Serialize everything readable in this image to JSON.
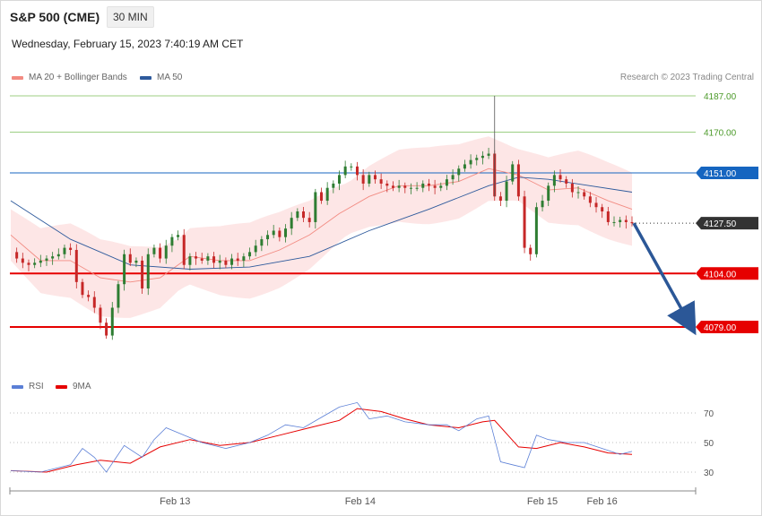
{
  "header": {
    "title": "S&P 500 (CME)",
    "timeframe": "30 MIN",
    "datetime": "Wednesday, February 15, 2023 7:40:19 AM CET",
    "credit": "Research © 2023 Trading Central"
  },
  "legend": {
    "ma20_label": "MA 20 + Bollinger Bands",
    "ma50_label": "MA 50",
    "rsi_label": "RSI",
    "rsi_ma_label": "9MA"
  },
  "colors": {
    "ma20": "#f28b82",
    "ma50": "#2e5a9c",
    "bollinger_fill": "#fde2e2",
    "up_candle": "#2e7d32",
    "down_candle": "#c62828",
    "resistance_green": "#7cbf5a",
    "current_price": "#1565c0",
    "support_red": "#e60000",
    "rsi": "#5b7fd6",
    "rsi_ma": "#e60000",
    "arrow": "#2b5797"
  },
  "chart_data": [
    {
      "type": "line",
      "title": "S&P 500 (CME)",
      "timeframe": "30 MIN",
      "x_ticks": [
        "Feb 13",
        "Feb 14",
        "Feb 15",
        "Feb 16"
      ],
      "ylim": [
        4042,
        4192
      ],
      "levels": [
        {
          "value": 4187.0,
          "label": "4187.00",
          "kind": "resistance"
        },
        {
          "value": 4170.0,
          "label": "4170.00",
          "kind": "resistance"
        },
        {
          "value": 4151.0,
          "label": "4151.00",
          "kind": "current"
        },
        {
          "value": 4127.5,
          "label": "4127.50",
          "kind": "last"
        },
        {
          "value": 4104.0,
          "label": "4104.00",
          "kind": "support"
        },
        {
          "value": 4079.0,
          "label": "4079.00",
          "kind": "support"
        }
      ],
      "price_close_path": [
        [
          0,
          4114
        ],
        [
          2,
          4111
        ],
        [
          4,
          4109
        ],
        [
          6,
          4108
        ],
        [
          8,
          4109
        ],
        [
          10,
          4110
        ],
        [
          12,
          4111
        ],
        [
          14,
          4112
        ],
        [
          16,
          4113
        ],
        [
          18,
          4116
        ],
        [
          20,
          4115
        ],
        [
          22,
          4100
        ],
        [
          24,
          4094
        ],
        [
          26,
          4093
        ],
        [
          28,
          4088
        ],
        [
          30,
          4081
        ],
        [
          32,
          4075
        ],
        [
          34,
          4088
        ],
        [
          36,
          4099
        ],
        [
          38,
          4113
        ],
        [
          40,
          4109
        ],
        [
          42,
          4110
        ],
        [
          44,
          4097
        ],
        [
          46,
          4113
        ],
        [
          48,
          4116
        ],
        [
          50,
          4111
        ],
        [
          52,
          4117
        ],
        [
          54,
          4121
        ],
        [
          56,
          4122
        ],
        [
          58,
          4108
        ],
        [
          60,
          4112
        ],
        [
          62,
          4111
        ],
        [
          64,
          4110
        ],
        [
          66,
          4112
        ],
        [
          68,
          4109
        ],
        [
          70,
          4110
        ],
        [
          72,
          4108
        ],
        [
          74,
          4111
        ],
        [
          76,
          4110
        ],
        [
          78,
          4112
        ],
        [
          80,
          4114
        ],
        [
          82,
          4117
        ],
        [
          84,
          4120
        ],
        [
          86,
          4122
        ],
        [
          88,
          4124
        ],
        [
          90,
          4121
        ],
        [
          92,
          4125
        ],
        [
          94,
          4130
        ],
        [
          96,
          4133
        ],
        [
          98,
          4130
        ],
        [
          100,
          4128
        ],
        [
          102,
          4142
        ],
        [
          104,
          4138
        ],
        [
          106,
          4144
        ],
        [
          108,
          4146
        ],
        [
          110,
          4150
        ],
        [
          112,
          4154
        ],
        [
          114,
          4154
        ],
        [
          116,
          4150
        ],
        [
          118,
          4146
        ],
        [
          120,
          4150
        ],
        [
          122,
          4148
        ],
        [
          124,
          4146
        ],
        [
          126,
          4145
        ],
        [
          128,
          4144
        ],
        [
          130,
          4145
        ],
        [
          132,
          4144
        ],
        [
          134,
          4144
        ],
        [
          136,
          4144
        ],
        [
          138,
          4146
        ],
        [
          140,
          4145
        ],
        [
          142,
          4144
        ],
        [
          144,
          4145
        ],
        [
          146,
          4148
        ],
        [
          148,
          4150
        ],
        [
          150,
          4153
        ],
        [
          152,
          4155
        ],
        [
          154,
          4157
        ],
        [
          156,
          4158
        ],
        [
          158,
          4159
        ],
        [
          160,
          4160
        ],
        [
          162,
          4140
        ],
        [
          164,
          4138
        ],
        [
          166,
          4147
        ],
        [
          168,
          4155
        ],
        [
          170,
          4140
        ],
        [
          172,
          4116
        ],
        [
          174,
          4113
        ],
        [
          176,
          4135
        ],
        [
          178,
          4138
        ],
        [
          180,
          4145
        ],
        [
          182,
          4150
        ],
        [
          184,
          4148
        ],
        [
          186,
          4146
        ],
        [
          188,
          4142
        ],
        [
          190,
          4142
        ],
        [
          192,
          4140
        ],
        [
          194,
          4137
        ],
        [
          196,
          4135
        ],
        [
          198,
          4133
        ],
        [
          200,
          4128
        ],
        [
          202,
          4128
        ],
        [
          204,
          4129
        ],
        [
          206,
          4128
        ],
        [
          208,
          4127.5
        ]
      ],
      "series": [
        {
          "name": "MA 20 + Bollinger Bands",
          "values": [
            [
              0,
              4122
            ],
            [
              10,
              4110
            ],
            [
              20,
              4110
            ],
            [
              30,
              4102
            ],
            [
              40,
              4100
            ],
            [
              50,
              4102
            ],
            [
              60,
              4112
            ],
            [
              70,
              4110
            ],
            [
              80,
              4110
            ],
            [
              90,
              4115
            ],
            [
              100,
              4122
            ],
            [
              110,
              4132
            ],
            [
              120,
              4140
            ],
            [
              130,
              4145
            ],
            [
              140,
              4145
            ],
            [
              150,
              4147
            ],
            [
              160,
              4153
            ],
            [
              170,
              4150
            ],
            [
              180,
              4143
            ],
            [
              190,
              4144
            ],
            [
              200,
              4138
            ],
            [
              208,
              4134
            ]
          ]
        },
        {
          "name": "MA 50",
          "values": [
            [
              0,
              4138
            ],
            [
              20,
              4120
            ],
            [
              40,
              4108
            ],
            [
              60,
              4106
            ],
            [
              80,
              4107
            ],
            [
              100,
              4112
            ],
            [
              120,
              4124
            ],
            [
              140,
              4134
            ],
            [
              160,
              4145
            ],
            [
              170,
              4149
            ],
            [
              180,
              4148
            ],
            [
              208,
              4142
            ]
          ]
        }
      ]
    },
    {
      "type": "line",
      "title": "",
      "ylim": [
        20,
        85
      ],
      "y_ticks": [
        30,
        50,
        70
      ],
      "series": [
        {
          "name": "RSI",
          "values": [
            [
              0,
              31
            ],
            [
              10,
              30
            ],
            [
              20,
              35
            ],
            [
              24,
              46
            ],
            [
              28,
              40
            ],
            [
              32,
              30
            ],
            [
              38,
              48
            ],
            [
              44,
              40
            ],
            [
              48,
              52
            ],
            [
              52,
              60
            ],
            [
              58,
              55
            ],
            [
              64,
              50
            ],
            [
              72,
              46
            ],
            [
              80,
              50
            ],
            [
              86,
              55
            ],
            [
              92,
              62
            ],
            [
              98,
              60
            ],
            [
              104,
              67
            ],
            [
              110,
              74
            ],
            [
              116,
              77
            ],
            [
              120,
              66
            ],
            [
              126,
              68
            ],
            [
              132,
              64
            ],
            [
              140,
              62
            ],
            [
              146,
              62
            ],
            [
              150,
              58
            ],
            [
              156,
              66
            ],
            [
              160,
              68
            ],
            [
              164,
              37
            ],
            [
              168,
              35
            ],
            [
              172,
              33
            ],
            [
              176,
              55
            ],
            [
              180,
              52
            ],
            [
              186,
              50
            ],
            [
              192,
              50
            ],
            [
              198,
              46
            ],
            [
              204,
              42
            ],
            [
              208,
              44
            ]
          ]
        },
        {
          "name": "9MA",
          "values": [
            [
              0,
              31
            ],
            [
              12,
              30
            ],
            [
              22,
              35
            ],
            [
              30,
              38
            ],
            [
              40,
              36
            ],
            [
              50,
              47
            ],
            [
              60,
              52
            ],
            [
              70,
              48
            ],
            [
              80,
              50
            ],
            [
              90,
              55
            ],
            [
              100,
              60
            ],
            [
              110,
              65
            ],
            [
              116,
              73
            ],
            [
              124,
              71
            ],
            [
              132,
              66
            ],
            [
              140,
              62
            ],
            [
              150,
              60
            ],
            [
              158,
              64
            ],
            [
              162,
              65
            ],
            [
              170,
              47
            ],
            [
              176,
              46
            ],
            [
              184,
              50
            ],
            [
              192,
              47
            ],
            [
              200,
              43
            ],
            [
              208,
              42
            ]
          ]
        }
      ]
    }
  ]
}
